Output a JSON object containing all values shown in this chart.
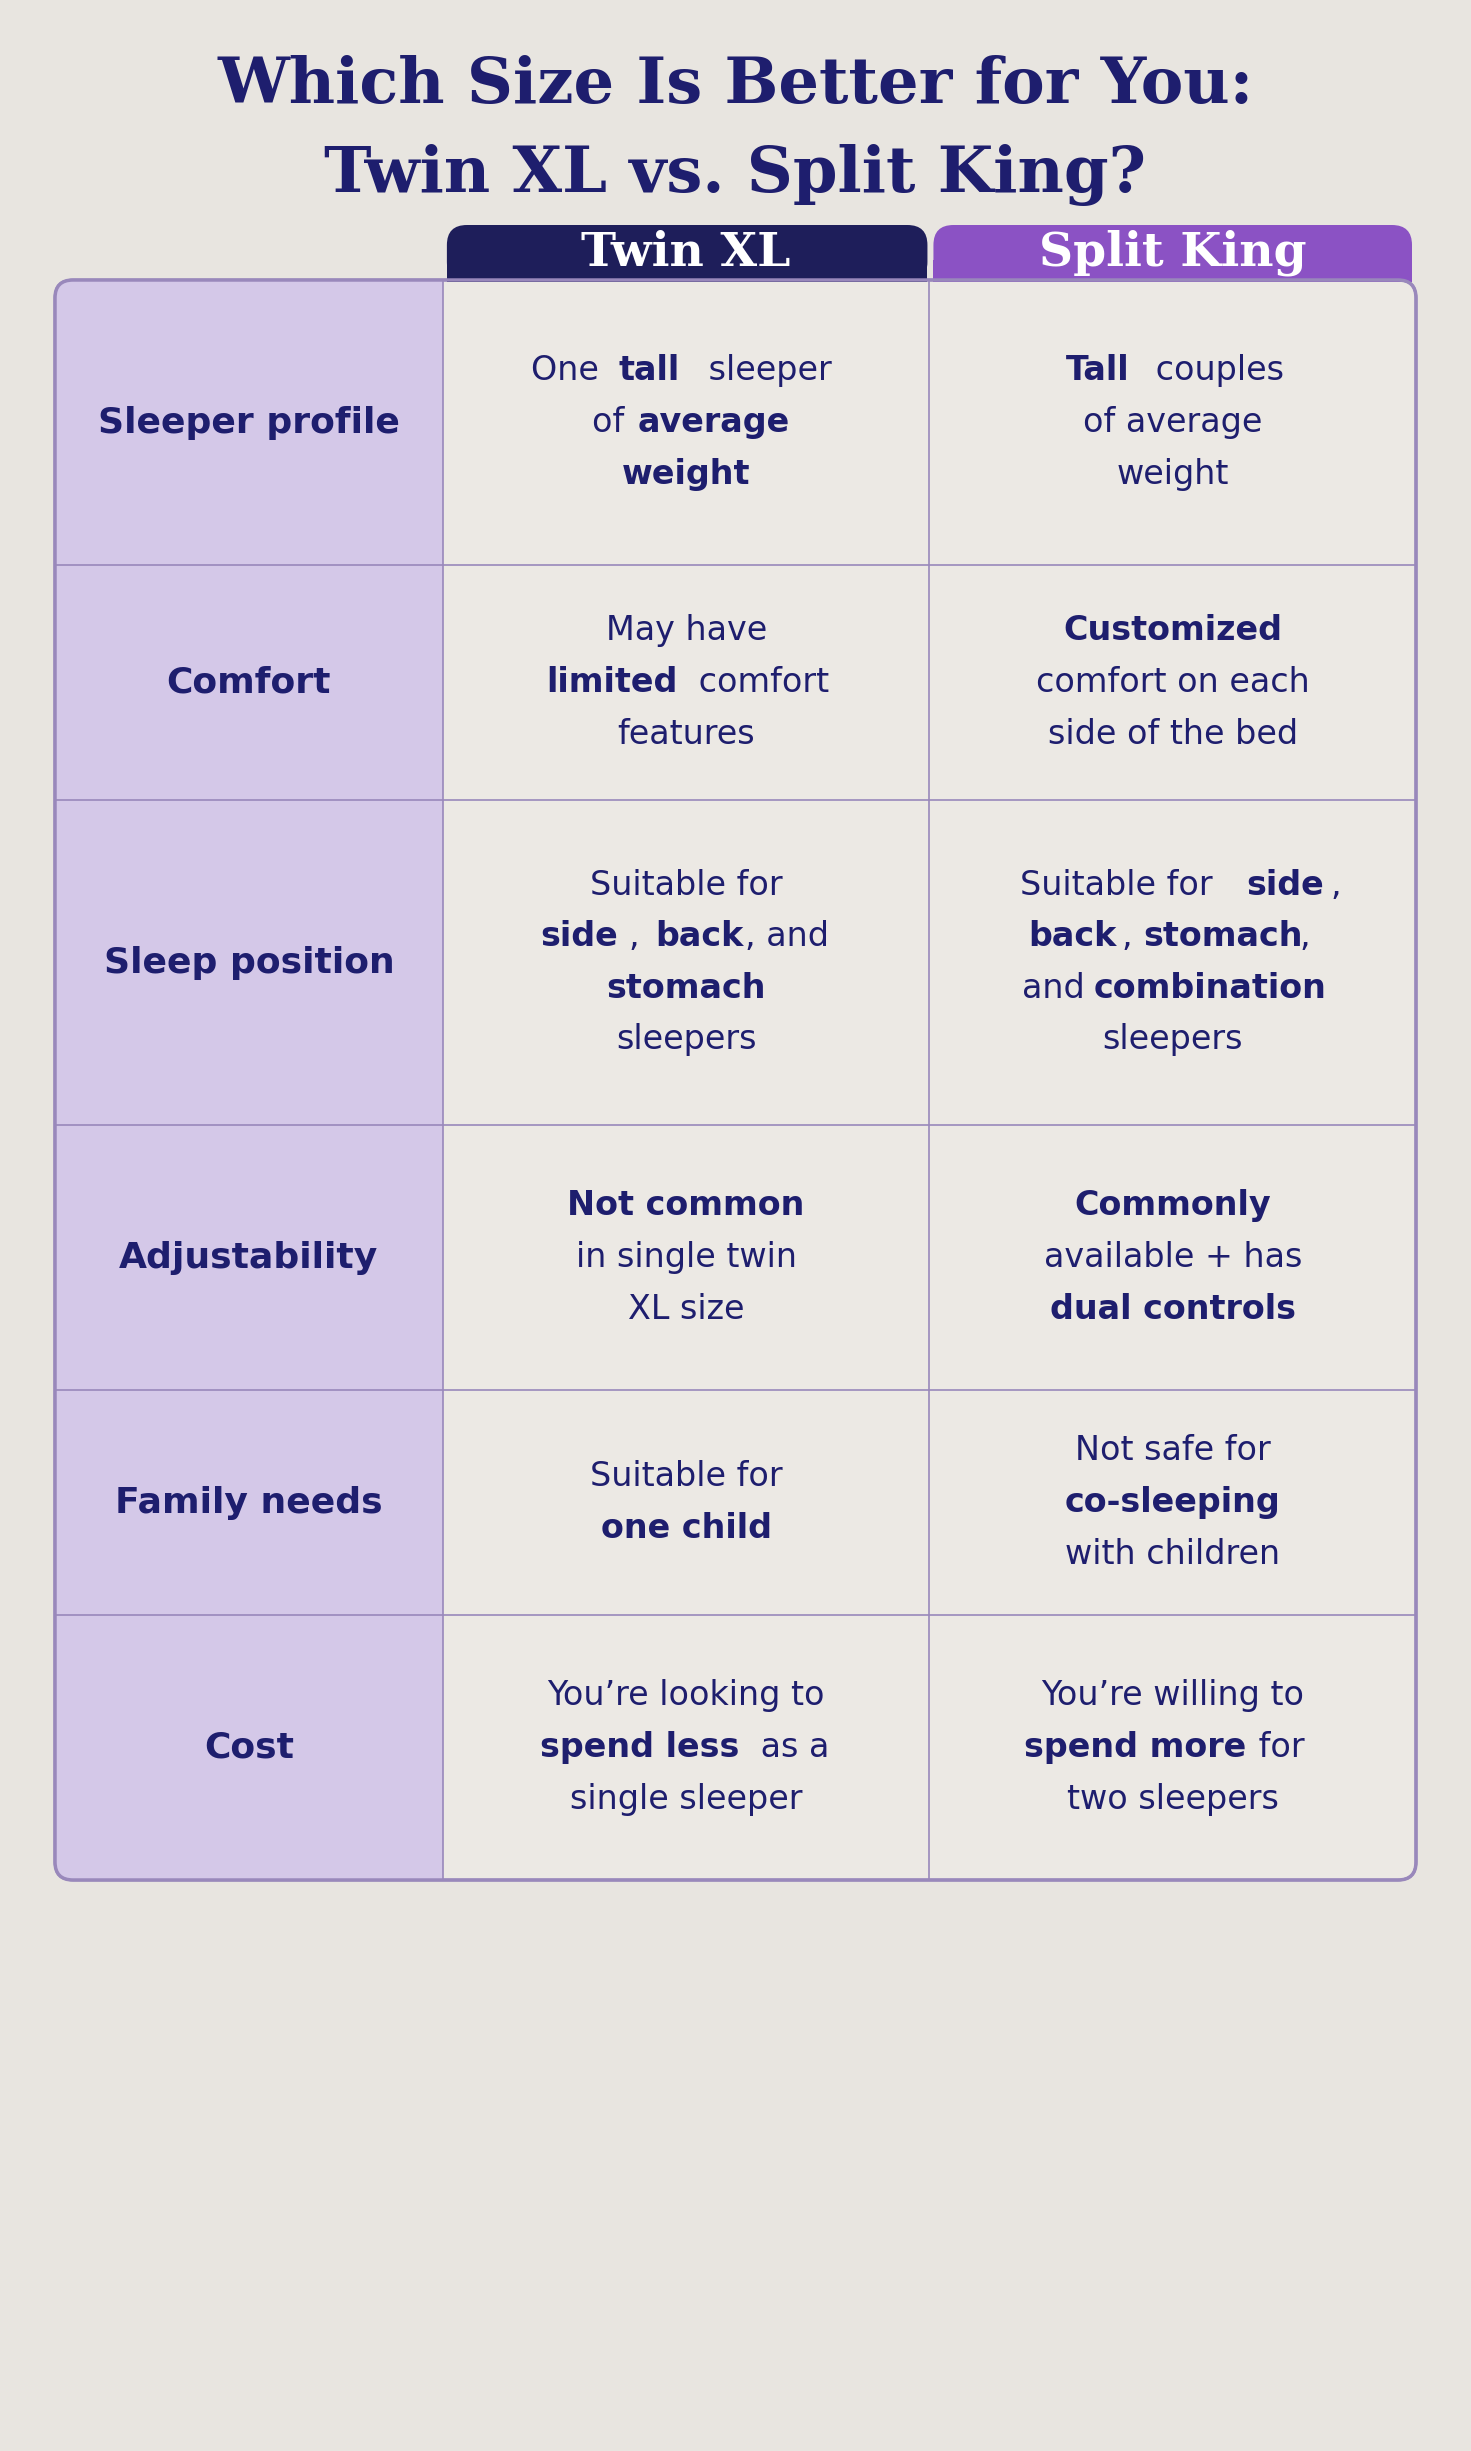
{
  "title_line1": "Which Size Is Better for You:",
  "title_line2": "Twin XL vs. Split King?",
  "title_color": "#1e1e6e",
  "background_color": "#e8e5e0",
  "header_col1_bg": "#1e1e5a",
  "header_col2_bg": "#8b52c4",
  "header_text_color": "#ffffff",
  "row_label_bg": "#d4c8e8",
  "row_label_text_color": "#1e1e6e",
  "cell_bg": "#ece9e4",
  "cell_text_color": "#1e1e6e",
  "border_color": "#9988bb",
  "col_headers": [
    "Twin XL",
    "Split King"
  ],
  "rows": [
    {
      "label": "Sleeper profile",
      "col1_lines": [
        [
          {
            "t": "One ",
            "b": false
          },
          {
            "t": "tall",
            "b": true
          },
          {
            "t": " sleeper",
            "b": false
          }
        ],
        [
          {
            "t": "of ",
            "b": false
          },
          {
            "t": "average",
            "b": true
          }
        ],
        [
          {
            "t": "weight",
            "b": true
          }
        ]
      ],
      "col2_lines": [
        [
          {
            "t": "Tall",
            "b": true
          },
          {
            "t": " couples",
            "b": false
          }
        ],
        [
          {
            "t": "of average",
            "b": false
          }
        ],
        [
          {
            "t": "weight",
            "b": false
          }
        ]
      ]
    },
    {
      "label": "Comfort",
      "col1_lines": [
        [
          {
            "t": "May have",
            "b": false
          }
        ],
        [
          {
            "t": "limited",
            "b": true
          },
          {
            "t": " comfort",
            "b": false
          }
        ],
        [
          {
            "t": "features",
            "b": false
          }
        ]
      ],
      "col2_lines": [
        [
          {
            "t": "Customized",
            "b": true
          }
        ],
        [
          {
            "t": "comfort on each",
            "b": false
          }
        ],
        [
          {
            "t": "side of the bed",
            "b": false
          }
        ]
      ]
    },
    {
      "label": "Sleep position",
      "col1_lines": [
        [
          {
            "t": "Suitable for",
            "b": false
          }
        ],
        [
          {
            "t": "side",
            "b": true
          },
          {
            "t": ", ",
            "b": false
          },
          {
            "t": "back",
            "b": true
          },
          {
            "t": ", and",
            "b": false
          }
        ],
        [
          {
            "t": "stomach",
            "b": true
          }
        ],
        [
          {
            "t": "sleepers",
            "b": false
          }
        ]
      ],
      "col2_lines": [
        [
          {
            "t": "Suitable for ",
            "b": false
          },
          {
            "t": "side",
            "b": true
          },
          {
            "t": ",",
            "b": false
          }
        ],
        [
          {
            "t": "back",
            "b": true
          },
          {
            "t": ", ",
            "b": false
          },
          {
            "t": "stomach",
            "b": true
          },
          {
            "t": ",",
            "b": false
          }
        ],
        [
          {
            "t": "and ",
            "b": false
          },
          {
            "t": "combination",
            "b": true
          }
        ],
        [
          {
            "t": "sleepers",
            "b": false
          }
        ]
      ]
    },
    {
      "label": "Adjustability",
      "col1_lines": [
        [
          {
            "t": "Not common",
            "b": true
          }
        ],
        [
          {
            "t": "in single twin",
            "b": false
          }
        ],
        [
          {
            "t": "XL size",
            "b": false
          }
        ]
      ],
      "col2_lines": [
        [
          {
            "t": "Commonly",
            "b": true
          }
        ],
        [
          {
            "t": "available + has",
            "b": false
          }
        ],
        [
          {
            "t": "dual controls",
            "b": true
          }
        ]
      ]
    },
    {
      "label": "Family needs",
      "col1_lines": [
        [
          {
            "t": "Suitable for",
            "b": false
          }
        ],
        [
          {
            "t": "one child",
            "b": true
          }
        ]
      ],
      "col2_lines": [
        [
          {
            "t": "Not safe for",
            "b": false
          }
        ],
        [
          {
            "t": "co-sleeping",
            "b": true
          }
        ],
        [
          {
            "t": "with children",
            "b": false
          }
        ]
      ]
    },
    {
      "label": "Cost",
      "col1_lines": [
        [
          {
            "t": "You’re looking to",
            "b": false
          }
        ],
        [
          {
            "t": "spend less",
            "b": true
          },
          {
            "t": " as a",
            "b": false
          }
        ],
        [
          {
            "t": "single sleeper",
            "b": false
          }
        ]
      ],
      "col2_lines": [
        [
          {
            "t": "You’re willing to",
            "b": false
          }
        ],
        [
          {
            "t": "spend more",
            "b": true
          },
          {
            "t": " for",
            "b": false
          }
        ],
        [
          {
            "t": "two sleepers",
            "b": false
          }
        ]
      ]
    }
  ]
}
